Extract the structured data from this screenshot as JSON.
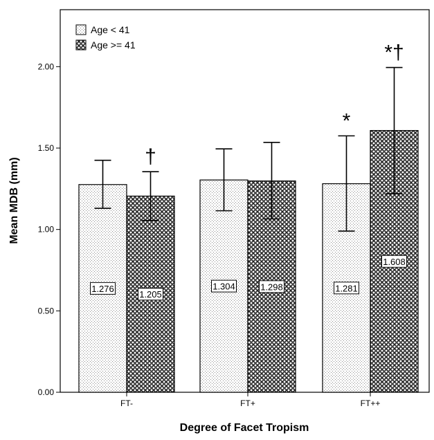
{
  "chart_data": {
    "type": "bar",
    "title": "",
    "xlabel": "Degree of Facet Tropism",
    "ylabel": "Mean MDB (mm)",
    "categories": [
      "FT-",
      "FT+",
      "FT++"
    ],
    "series": [
      {
        "name": "Age < 41",
        "values": [
          1.276,
          1.304,
          1.281
        ],
        "labels": [
          "1.276",
          "1.304",
          "1.281"
        ],
        "error_low": [
          1.13,
          1.115,
          0.99
        ],
        "error_high": [
          1.425,
          1.495,
          1.575
        ],
        "markers": [
          "",
          "",
          "*"
        ],
        "pattern": "dots"
      },
      {
        "name": "Age >= 41",
        "values": [
          1.205,
          1.298,
          1.608
        ],
        "labels": [
          "1.205",
          "1.298",
          "1.608"
        ],
        "error_low": [
          1.055,
          1.065,
          1.22
        ],
        "error_high": [
          1.355,
          1.535,
          1.995
        ],
        "markers": [
          "†",
          "",
          "*†"
        ],
        "pattern": "crosshatch"
      }
    ],
    "y_ticks": [
      "0.00",
      "0.50",
      "1.00",
      "1.50",
      "2.00"
    ],
    "ylim": [
      0,
      2.35
    ],
    "grid": false,
    "legend_position": "top-left",
    "error_bars": true
  }
}
